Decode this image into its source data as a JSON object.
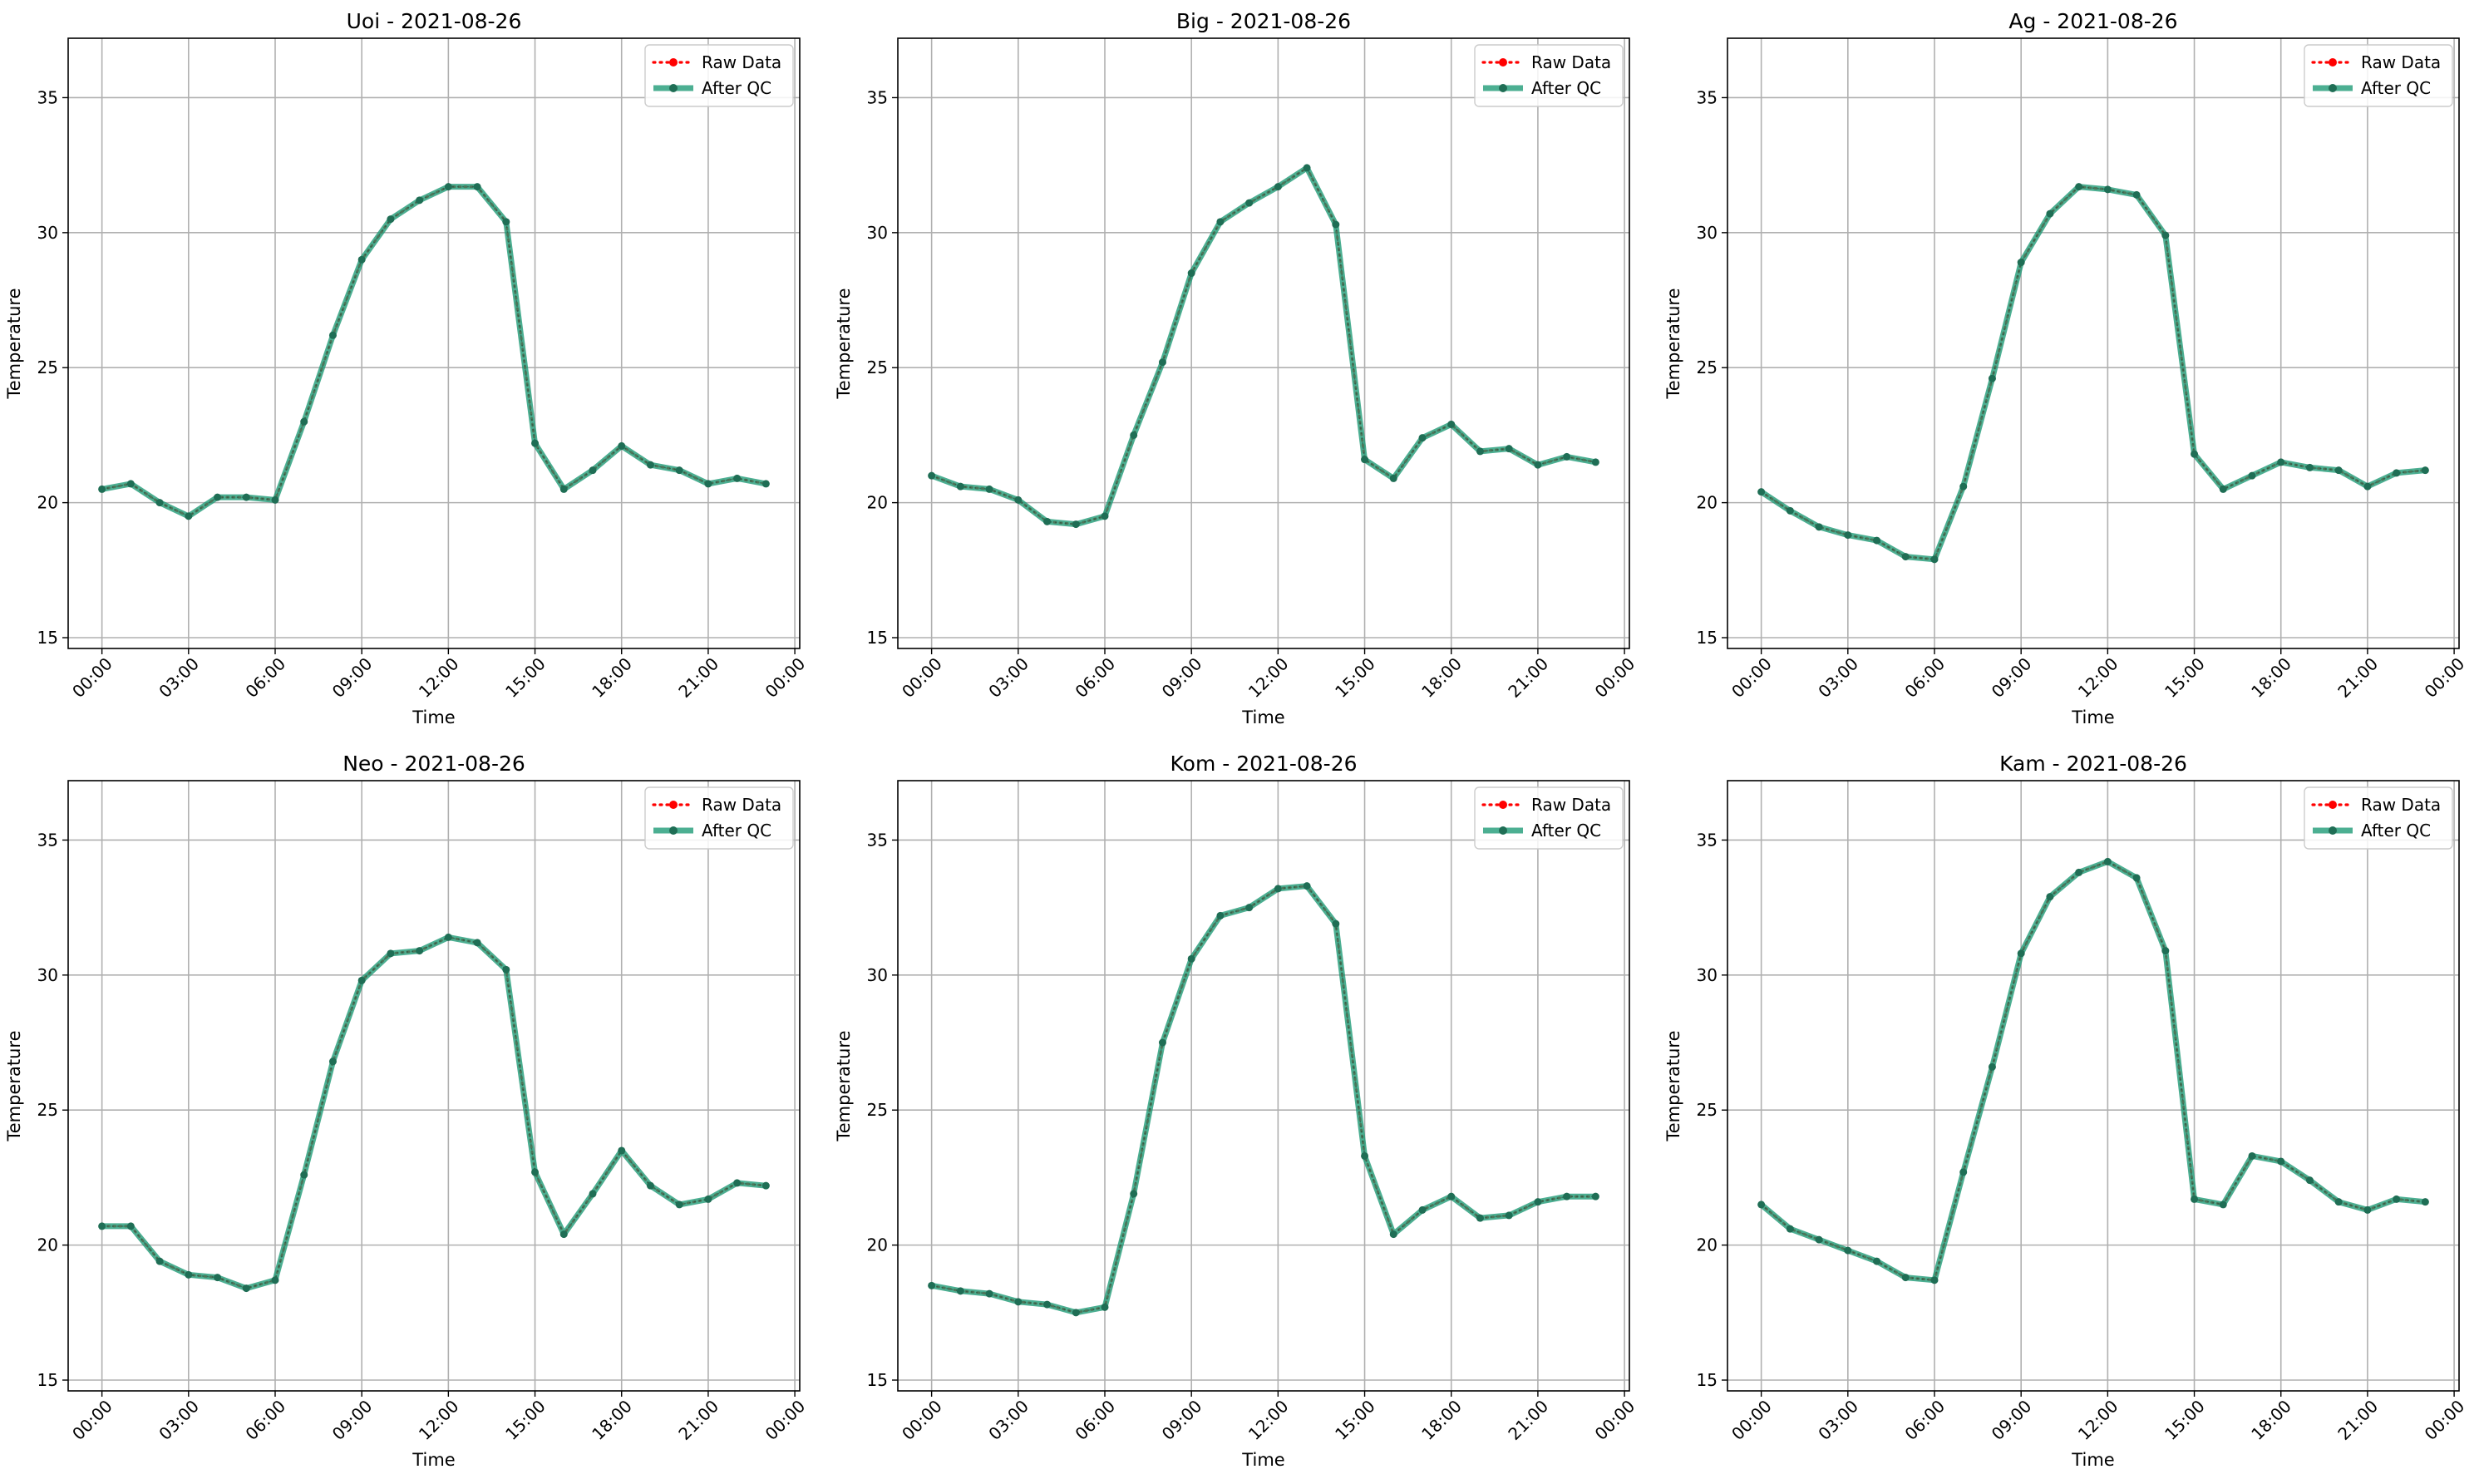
{
  "chart_data": [
    {
      "type": "line",
      "title": "Uoi - 2021-08-26",
      "xlabel": "Time",
      "ylabel": "Temperature",
      "ylim": [
        14.6,
        37.2
      ],
      "yticks": [
        15,
        20,
        25,
        30,
        35
      ],
      "xlim": [
        "2021-08-26 -01:10",
        "2021-08-27 00:10"
      ],
      "xticks": [
        "00:00",
        "03:00",
        "06:00",
        "09:00",
        "12:00",
        "15:00",
        "18:00",
        "21:00",
        "00:00"
      ],
      "grid": true,
      "legend": "top-right",
      "x": [
        "00:00",
        "01:00",
        "02:00",
        "03:00",
        "04:00",
        "05:00",
        "06:00",
        "07:00",
        "08:00",
        "09:00",
        "10:00",
        "11:00",
        "12:00",
        "13:00",
        "14:00",
        "15:00",
        "16:00",
        "17:00",
        "18:00",
        "19:00",
        "20:00",
        "21:00",
        "22:00",
        "23:00"
      ],
      "series": [
        {
          "name": "Raw Data",
          "color": "#ff0000",
          "style": "dotted",
          "values": [
            20.5,
            20.7,
            20.0,
            19.5,
            20.2,
            20.2,
            20.1,
            23.0,
            26.2,
            29.0,
            30.5,
            31.2,
            31.7,
            31.7,
            30.4,
            22.2,
            20.5,
            21.2,
            22.1,
            21.4,
            21.2,
            20.7,
            20.9,
            20.7
          ]
        },
        {
          "name": "After QC",
          "color": "#1a9873",
          "style": "solid",
          "values": [
            20.5,
            20.7,
            20.0,
            19.5,
            20.2,
            20.2,
            20.1,
            23.0,
            26.2,
            29.0,
            30.5,
            31.2,
            31.7,
            31.7,
            30.4,
            22.2,
            20.5,
            21.2,
            22.1,
            21.4,
            21.2,
            20.7,
            20.9,
            20.7
          ]
        }
      ]
    },
    {
      "type": "line",
      "title": "Big - 2021-08-26",
      "xlabel": "Time",
      "ylabel": "Temperature",
      "ylim": [
        14.6,
        37.2
      ],
      "yticks": [
        15,
        20,
        25,
        30,
        35
      ],
      "xticks": [
        "00:00",
        "03:00",
        "06:00",
        "09:00",
        "12:00",
        "15:00",
        "18:00",
        "21:00",
        "00:00"
      ],
      "grid": true,
      "legend": "top-right",
      "x": [
        "00:00",
        "01:00",
        "02:00",
        "03:00",
        "04:00",
        "05:00",
        "06:00",
        "07:00",
        "08:00",
        "09:00",
        "10:00",
        "11:00",
        "12:00",
        "13:00",
        "14:00",
        "15:00",
        "16:00",
        "17:00",
        "18:00",
        "19:00",
        "20:00",
        "21:00",
        "22:00",
        "23:00"
      ],
      "series": [
        {
          "name": "Raw Data",
          "color": "#ff0000",
          "style": "dotted",
          "values": [
            21.0,
            20.6,
            20.5,
            20.1,
            19.3,
            19.2,
            19.5,
            22.5,
            25.2,
            28.5,
            30.4,
            31.1,
            31.7,
            32.4,
            30.3,
            21.6,
            20.9,
            22.4,
            22.9,
            21.9,
            22.0,
            21.4,
            21.7,
            21.5
          ]
        },
        {
          "name": "After QC",
          "color": "#1a9873",
          "style": "solid",
          "values": [
            21.0,
            20.6,
            20.5,
            20.1,
            19.3,
            19.2,
            19.5,
            22.5,
            25.2,
            28.5,
            30.4,
            31.1,
            31.7,
            32.4,
            30.3,
            21.6,
            20.9,
            22.4,
            22.9,
            21.9,
            22.0,
            21.4,
            21.7,
            21.5
          ]
        }
      ]
    },
    {
      "type": "line",
      "title": "Ag - 2021-08-26",
      "xlabel": "Time",
      "ylabel": "Temperature",
      "ylim": [
        14.6,
        37.2
      ],
      "yticks": [
        15,
        20,
        25,
        30,
        35
      ],
      "xticks": [
        "00:00",
        "03:00",
        "06:00",
        "09:00",
        "12:00",
        "15:00",
        "18:00",
        "21:00",
        "00:00"
      ],
      "grid": true,
      "legend": "top-right",
      "x": [
        "00:00",
        "01:00",
        "02:00",
        "03:00",
        "04:00",
        "05:00",
        "06:00",
        "07:00",
        "08:00",
        "09:00",
        "10:00",
        "11:00",
        "12:00",
        "13:00",
        "14:00",
        "15:00",
        "16:00",
        "17:00",
        "18:00",
        "19:00",
        "20:00",
        "21:00",
        "22:00",
        "23:00"
      ],
      "series": [
        {
          "name": "Raw Data",
          "color": "#ff0000",
          "style": "dotted",
          "values": [
            20.4,
            19.7,
            19.1,
            18.8,
            18.6,
            18.0,
            17.9,
            20.6,
            24.6,
            28.9,
            30.7,
            31.7,
            31.6,
            31.4,
            29.9,
            21.8,
            20.5,
            21.0,
            21.5,
            21.3,
            21.2,
            20.6,
            21.1,
            21.2
          ]
        },
        {
          "name": "After QC",
          "color": "#1a9873",
          "style": "solid",
          "values": [
            20.4,
            19.7,
            19.1,
            18.8,
            18.6,
            18.0,
            17.9,
            20.6,
            24.6,
            28.9,
            30.7,
            31.7,
            31.6,
            31.4,
            29.9,
            21.8,
            20.5,
            21.0,
            21.5,
            21.3,
            21.2,
            20.6,
            21.1,
            21.2
          ]
        }
      ]
    },
    {
      "type": "line",
      "title": "Neo - 2021-08-26",
      "xlabel": "Time",
      "ylabel": "Temperature",
      "ylim": [
        14.6,
        37.2
      ],
      "yticks": [
        15,
        20,
        25,
        30,
        35
      ],
      "xticks": [
        "00:00",
        "03:00",
        "06:00",
        "09:00",
        "12:00",
        "15:00",
        "18:00",
        "21:00",
        "00:00"
      ],
      "grid": true,
      "legend": "top-right",
      "x": [
        "00:00",
        "01:00",
        "02:00",
        "03:00",
        "04:00",
        "05:00",
        "06:00",
        "07:00",
        "08:00",
        "09:00",
        "10:00",
        "11:00",
        "12:00",
        "13:00",
        "14:00",
        "15:00",
        "16:00",
        "17:00",
        "18:00",
        "19:00",
        "20:00",
        "21:00",
        "22:00",
        "23:00"
      ],
      "series": [
        {
          "name": "Raw Data",
          "color": "#ff0000",
          "style": "dotted",
          "values": [
            20.7,
            20.7,
            19.4,
            18.9,
            18.8,
            18.4,
            18.7,
            22.6,
            26.8,
            29.8,
            30.8,
            30.9,
            31.4,
            31.2,
            30.2,
            22.7,
            20.4,
            21.9,
            23.5,
            22.2,
            21.5,
            21.7,
            22.3,
            22.2
          ]
        },
        {
          "name": "After QC",
          "color": "#1a9873",
          "style": "solid",
          "values": [
            20.7,
            20.7,
            19.4,
            18.9,
            18.8,
            18.4,
            18.7,
            22.6,
            26.8,
            29.8,
            30.8,
            30.9,
            31.4,
            31.2,
            30.2,
            22.7,
            20.4,
            21.9,
            23.5,
            22.2,
            21.5,
            21.7,
            22.3,
            22.2
          ]
        }
      ]
    },
    {
      "type": "line",
      "title": "Kom - 2021-08-26",
      "xlabel": "Time",
      "ylabel": "Temperature",
      "ylim": [
        14.6,
        37.2
      ],
      "yticks": [
        15,
        20,
        25,
        30,
        35
      ],
      "xticks": [
        "00:00",
        "03:00",
        "06:00",
        "09:00",
        "12:00",
        "15:00",
        "18:00",
        "21:00",
        "00:00"
      ],
      "grid": true,
      "legend": "top-right",
      "x": [
        "00:00",
        "01:00",
        "02:00",
        "03:00",
        "04:00",
        "05:00",
        "06:00",
        "07:00",
        "08:00",
        "09:00",
        "10:00",
        "11:00",
        "12:00",
        "13:00",
        "14:00",
        "15:00",
        "16:00",
        "17:00",
        "18:00",
        "19:00",
        "20:00",
        "21:00",
        "22:00",
        "23:00"
      ],
      "series": [
        {
          "name": "Raw Data",
          "color": "#ff0000",
          "style": "dotted",
          "values": [
            18.5,
            18.3,
            18.2,
            17.9,
            17.8,
            17.5,
            17.7,
            21.9,
            27.5,
            30.6,
            32.2,
            32.5,
            33.2,
            33.3,
            31.9,
            23.3,
            20.4,
            21.3,
            21.8,
            21.0,
            21.1,
            21.6,
            21.8,
            21.8
          ]
        },
        {
          "name": "After QC",
          "color": "#1a9873",
          "style": "solid",
          "values": [
            18.5,
            18.3,
            18.2,
            17.9,
            17.8,
            17.5,
            17.7,
            21.9,
            27.5,
            30.6,
            32.2,
            32.5,
            33.2,
            33.3,
            31.9,
            23.3,
            20.4,
            21.3,
            21.8,
            21.0,
            21.1,
            21.6,
            21.8,
            21.8
          ]
        }
      ]
    },
    {
      "type": "line",
      "title": "Kam - 2021-08-26",
      "xlabel": "Time",
      "ylabel": "Temperature",
      "ylim": [
        14.6,
        37.2
      ],
      "yticks": [
        15,
        20,
        25,
        30,
        35
      ],
      "xticks": [
        "00:00",
        "03:00",
        "06:00",
        "09:00",
        "12:00",
        "15:00",
        "18:00",
        "21:00",
        "00:00"
      ],
      "grid": true,
      "legend": "top-right",
      "x": [
        "00:00",
        "01:00",
        "02:00",
        "03:00",
        "04:00",
        "05:00",
        "06:00",
        "07:00",
        "08:00",
        "09:00",
        "10:00",
        "11:00",
        "12:00",
        "13:00",
        "14:00",
        "15:00",
        "16:00",
        "17:00",
        "18:00",
        "19:00",
        "20:00",
        "21:00",
        "22:00",
        "23:00"
      ],
      "series": [
        {
          "name": "Raw Data",
          "color": "#ff0000",
          "style": "dotted",
          "values": [
            21.5,
            20.6,
            20.2,
            19.8,
            19.4,
            18.8,
            18.7,
            22.7,
            26.6,
            30.8,
            32.9,
            33.8,
            34.2,
            33.6,
            30.9,
            21.7,
            21.5,
            23.3,
            23.1,
            22.4,
            21.6,
            21.3,
            21.7,
            21.6
          ]
        },
        {
          "name": "After QC",
          "color": "#1a9873",
          "style": "solid",
          "values": [
            21.5,
            20.6,
            20.2,
            19.8,
            19.4,
            18.8,
            18.7,
            22.7,
            26.6,
            30.8,
            32.9,
            33.8,
            34.2,
            33.6,
            30.9,
            21.7,
            21.5,
            23.3,
            23.1,
            22.4,
            21.6,
            21.3,
            21.7,
            21.6
          ]
        }
      ]
    }
  ]
}
